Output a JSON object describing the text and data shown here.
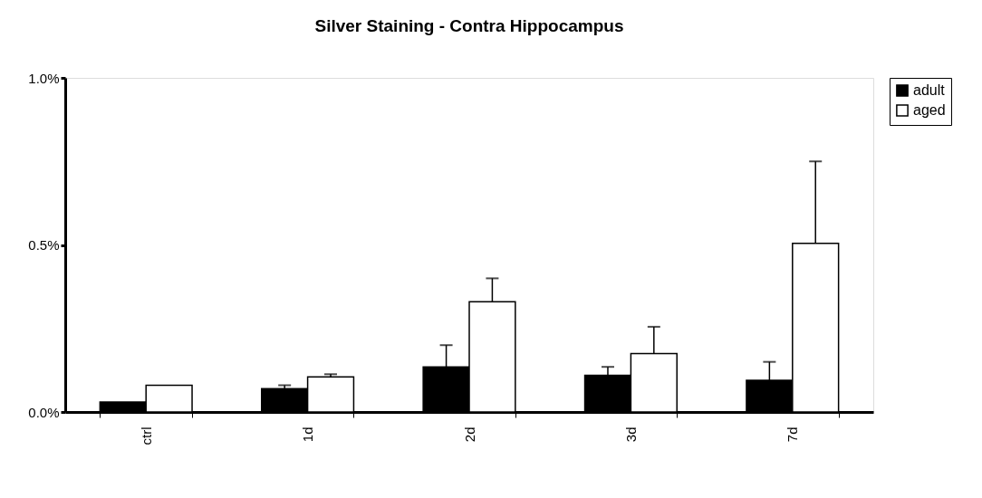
{
  "chart_data": {
    "type": "bar",
    "title": "Silver Staining - Contra Hippocampus",
    "categories": [
      "ctrl",
      "1d",
      "2d",
      "3d",
      "7d"
    ],
    "series": [
      {
        "name": "adult",
        "color": "#000000",
        "values": [
          0.03,
          0.07,
          0.135,
          0.11,
          0.095
        ],
        "errors": [
          null,
          [
            0.07,
            0.08
          ],
          [
            0.135,
            0.2
          ],
          [
            0.11,
            0.135
          ],
          [
            0.095,
            0.15
          ]
        ]
      },
      {
        "name": "aged",
        "color": "#ffffff",
        "values": [
          0.08,
          0.105,
          0.33,
          0.175,
          0.505
        ],
        "errors": [
          null,
          [
            0.105,
            0.113
          ],
          [
            0.33,
            0.4
          ],
          [
            0.175,
            0.255
          ],
          [
            0.505,
            0.75
          ]
        ]
      }
    ],
    "ylim": [
      0,
      1.0
    ],
    "yticks": [
      {
        "value": 0,
        "label": "0.0%"
      },
      {
        "value": 0.5,
        "label": "0.5%"
      },
      {
        "value": 1.0,
        "label": "1.0%"
      }
    ],
    "legend": "right",
    "grid": false
  }
}
